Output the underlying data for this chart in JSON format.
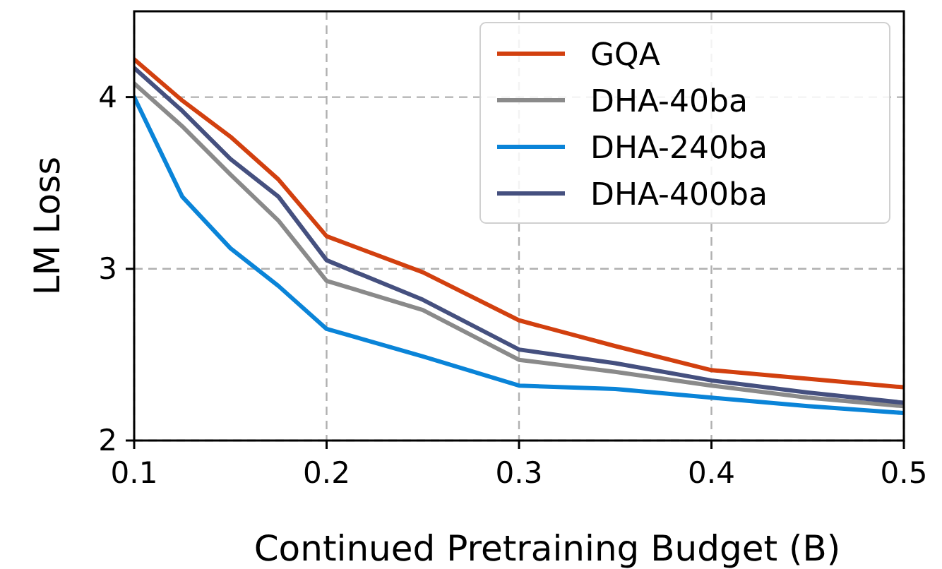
{
  "chart_data": {
    "type": "line",
    "xlabel": "Continued Pretraining Budget (B)",
    "ylabel": "LM Loss",
    "x": [
      0.1,
      0.125,
      0.15,
      0.175,
      0.2,
      0.25,
      0.3,
      0.35,
      0.4,
      0.45,
      0.5
    ],
    "series": [
      {
        "name": "GQA",
        "color": "#d2400f",
        "values": [
          4.22,
          3.98,
          3.77,
          3.52,
          3.19,
          2.98,
          2.7,
          2.55,
          2.41,
          2.36,
          2.31
        ]
      },
      {
        "name": "DHA-40ba",
        "color": "#8a8a8a",
        "values": [
          4.08,
          3.83,
          3.55,
          3.28,
          2.93,
          2.76,
          2.47,
          2.4,
          2.32,
          2.25,
          2.2
        ]
      },
      {
        "name": "DHA-240ba",
        "color": "#0a84d8",
        "values": [
          4.0,
          3.42,
          3.12,
          2.9,
          2.65,
          2.49,
          2.32,
          2.3,
          2.25,
          2.2,
          2.16
        ]
      },
      {
        "name": "DHA-400ba",
        "color": "#45507f",
        "values": [
          4.17,
          3.92,
          3.64,
          3.42,
          3.05,
          2.82,
          2.53,
          2.45,
          2.35,
          2.28,
          2.22
        ]
      }
    ],
    "xlim": [
      0.1,
      0.5
    ],
    "xticks": [
      0.1,
      0.2,
      0.3,
      0.4,
      0.5
    ],
    "ylim": [
      2,
      4.5
    ],
    "yticks": [
      2,
      3,
      4
    ],
    "grid": true,
    "legend": "top right"
  }
}
